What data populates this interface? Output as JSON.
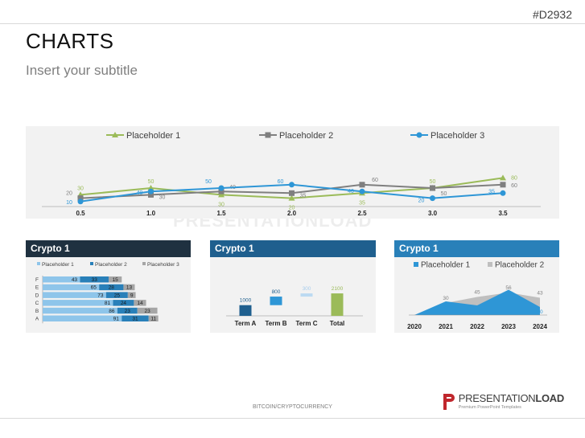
{
  "slide": {
    "code": "#D2932",
    "title": "CHARTS",
    "subtitle": "Insert your subtitle",
    "footer": "BITCOIN/CRYPTOCURRENCY",
    "watermark": "PRESENTATIONLOAD",
    "logo": {
      "brand_light": "PRESENTATION",
      "brand_bold": "LOAD",
      "tagline": "Premium PowerPoint Templates"
    }
  },
  "colors": {
    "green": "#9bbb59",
    "gray": "#7f7f7f",
    "blue": "#2e96d6",
    "dark": "#1f3140",
    "navy": "#1f5f8e",
    "mid": "#2980b9",
    "light": "#8ec5ea",
    "grayBar": "#a6a6a6",
    "grayArea": "#bfbfbf",
    "red": "#c0272d"
  },
  "chart_data": [
    {
      "type": "line",
      "title": "",
      "x": [
        "0.5",
        "1.0",
        "1.5",
        "2.0",
        "2.5",
        "3.0",
        "3.5"
      ],
      "series": [
        {
          "name": "Placeholder 1",
          "values": [
            30,
            50,
            30,
            20,
            35,
            50,
            80
          ]
        },
        {
          "name": "Placeholder 2",
          "values": [
            20,
            30,
            40,
            35,
            60,
            50,
            60
          ]
        },
        {
          "name": "Placeholder 3",
          "values": [
            10,
            40,
            50,
            60,
            40,
            20,
            35
          ]
        }
      ],
      "ylim": [
        0,
        100
      ],
      "legend": "top"
    },
    {
      "type": "bar",
      "orientation": "horizontal-stacked",
      "title": "Crypto 1",
      "categories": [
        "F",
        "E",
        "D",
        "C",
        "B",
        "A"
      ],
      "series": [
        {
          "name": "Placeholder 1",
          "values": [
            43,
            65,
            73,
            81,
            86,
            91
          ]
        },
        {
          "name": "Placeholder 2",
          "values": [
            33,
            28,
            25,
            24,
            23,
            31
          ]
        },
        {
          "name": "Placeholder 3",
          "values": [
            15,
            13,
            9,
            14,
            23,
            11
          ]
        }
      ],
      "legend": "top"
    },
    {
      "type": "bar",
      "orientation": "waterfall",
      "title": "Crypto 1",
      "categories": [
        "Term A",
        "Term B",
        "Term C",
        "Total"
      ],
      "values": [
        1000,
        800,
        300,
        2100
      ],
      "ylim": [
        0,
        2400
      ]
    },
    {
      "type": "area",
      "title": "Crypto 1",
      "x": [
        "2020",
        "2021",
        "2022",
        "2023",
        "2024"
      ],
      "series": [
        {
          "name": "Placeholder 1",
          "values": [
            0,
            34,
            24,
            63,
            20
          ]
        },
        {
          "name": "Placeholder 2",
          "values": [
            0,
            30,
            45,
            56,
            43
          ]
        }
      ],
      "ylim": [
        0,
        70
      ],
      "legend": "top"
    }
  ]
}
